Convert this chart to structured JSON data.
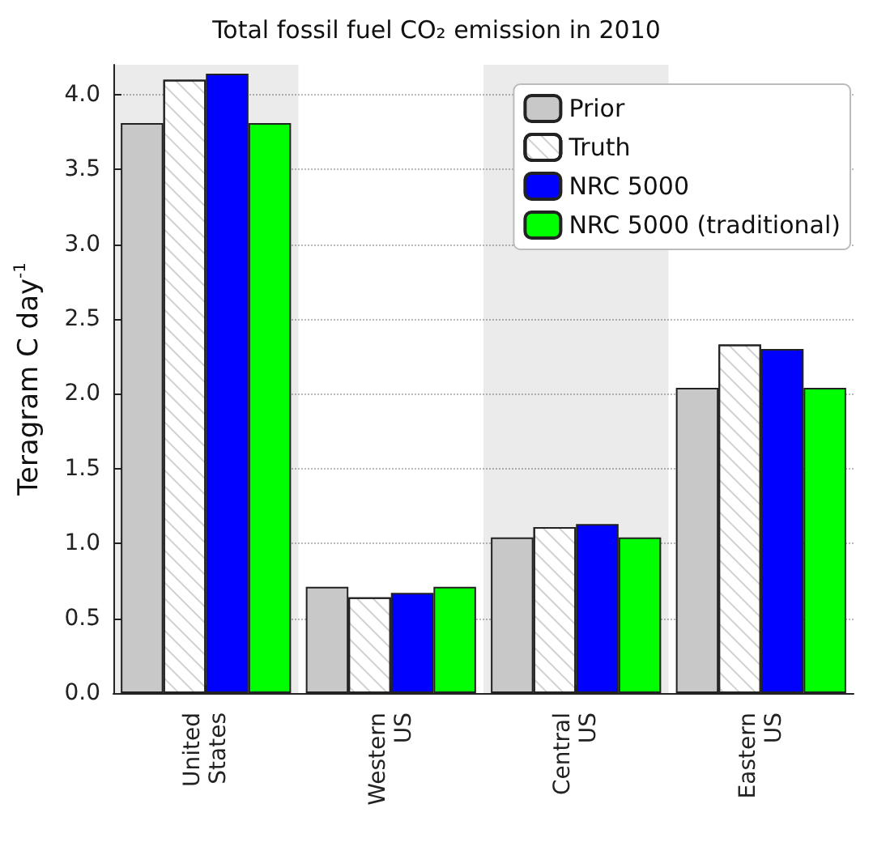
{
  "chart_data": {
    "type": "bar",
    "title": "Total fossil fuel CO₂ emission in 2010",
    "ylabel": "Teragram C day$^{-1}$",
    "categories": [
      "United States",
      "Western US",
      "Central US",
      "Eastern US"
    ],
    "series": [
      {
        "name": "Prior",
        "color": "#c8c8c8",
        "values": [
          3.81,
          0.71,
          1.04,
          2.04
        ]
      },
      {
        "name": "Truth",
        "color": "#ffffff",
        "values": [
          4.1,
          0.64,
          1.11,
          2.33
        ]
      },
      {
        "name": "NRC 5000",
        "color": "#0000ff",
        "values": [
          4.14,
          0.67,
          1.13,
          2.3
        ]
      },
      {
        "name": "NRC 5000 (traditional)",
        "color": "#00ff00",
        "values": [
          3.81,
          0.71,
          1.04,
          2.04
        ]
      }
    ],
    "ylim": [
      0,
      4.2
    ],
    "yticks": [
      {
        "value": 0,
        "label": "0.0"
      },
      0.5,
      {
        "value": 1,
        "label": "1.0"
      },
      1.5,
      {
        "value": 2,
        "label": "2.0"
      },
      2.5,
      {
        "value": 3,
        "label": "3.0"
      },
      3.5,
      {
        "value": 4,
        "label": "4.0"
      }
    ],
    "grid": "y",
    "legend": "top right"
  }
}
